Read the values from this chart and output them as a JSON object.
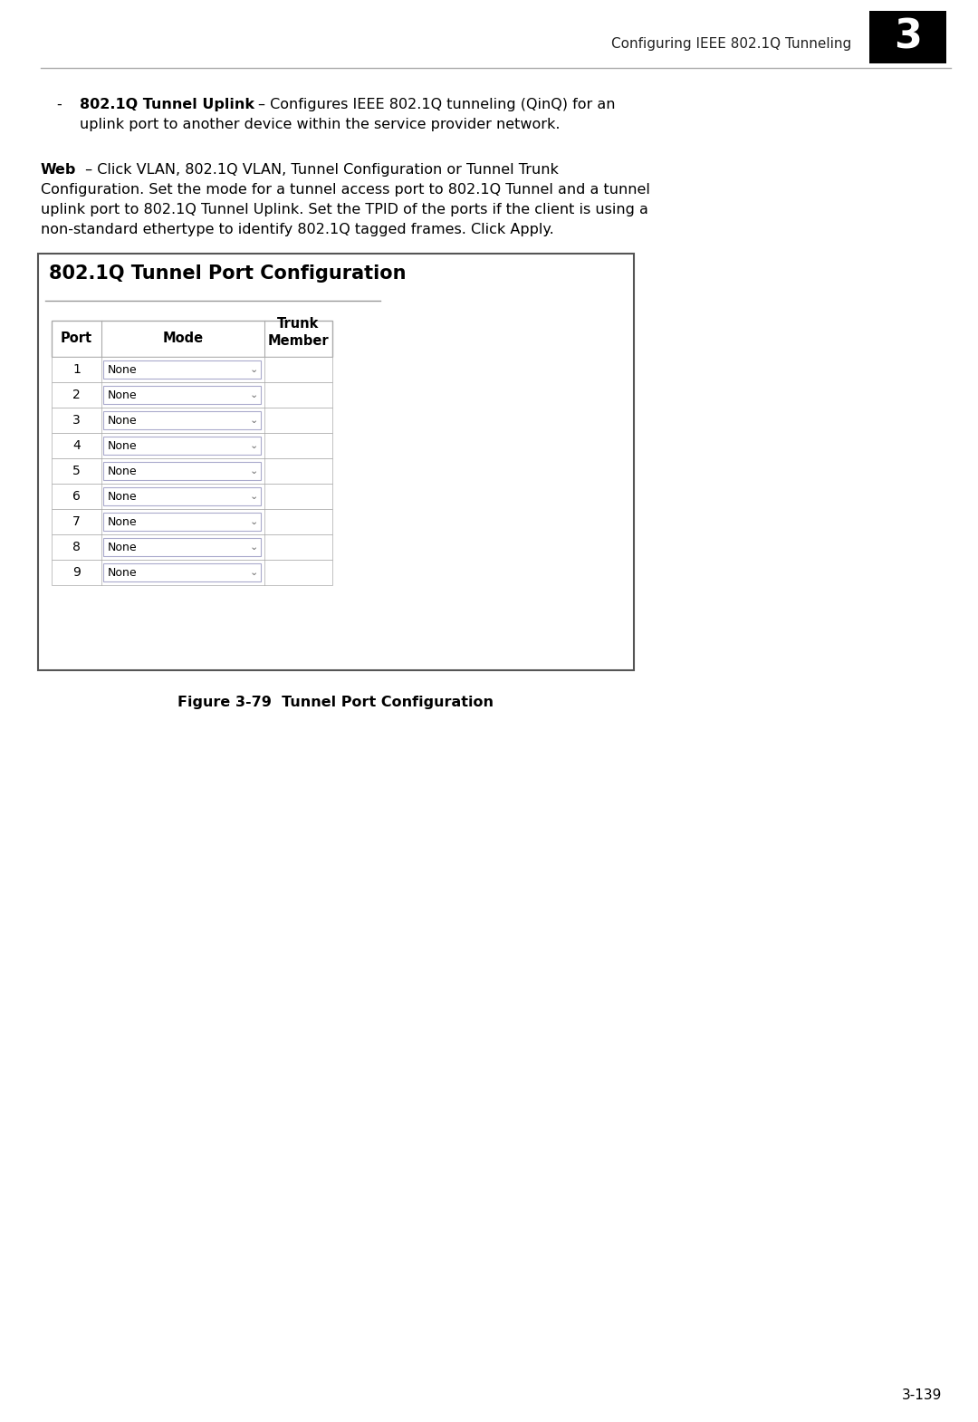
{
  "page_bg": "#ffffff",
  "header_text": "Configuring IEEE 802.1Q Tunneling",
  "header_chapter": "3",
  "bullet_bold": "802.1Q Tunnel Uplink",
  "bullet_dash": "  – Configures IEEE 802.1Q tunneling (QinQ) for an",
  "bullet_line2": "uplink port to another device within the service provider network.",
  "body_bold": "Web",
  "body_line1": " – Click VLAN, 802.1Q VLAN, Tunnel Configuration or Tunnel Trunk",
  "body_line2": "Configuration. Set the mode for a tunnel access port to 802.1Q Tunnel and a tunnel",
  "body_line3": "uplink port to 802.1Q Tunnel Uplink. Set the TPID of the ports if the client is using a",
  "body_line4": "non-standard ethertype to identify 802.1Q tagged frames. Click Apply.",
  "box_title": "802.1Q Tunnel Port Configuration",
  "table_headers": [
    "Port",
    "Mode",
    "Trunk\nMember"
  ],
  "table_rows": [
    [
      "1",
      "None"
    ],
    [
      "2",
      "None"
    ],
    [
      "3",
      "None"
    ],
    [
      "4",
      "None"
    ],
    [
      "5",
      "None"
    ],
    [
      "6",
      "None"
    ],
    [
      "7",
      "None"
    ],
    [
      "8",
      "None"
    ],
    [
      "9",
      "None"
    ]
  ],
  "figure_caption": "Figure 3-79  Tunnel Port Configuration",
  "page_number": "3-139",
  "header_line_color": "#aaaaaa",
  "box_border_color": "#555555",
  "table_border_color": "#aaaaaa",
  "dropdown_border_color": "#aaaacc",
  "text_color": "#000000",
  "bg_color": "#ffffff"
}
